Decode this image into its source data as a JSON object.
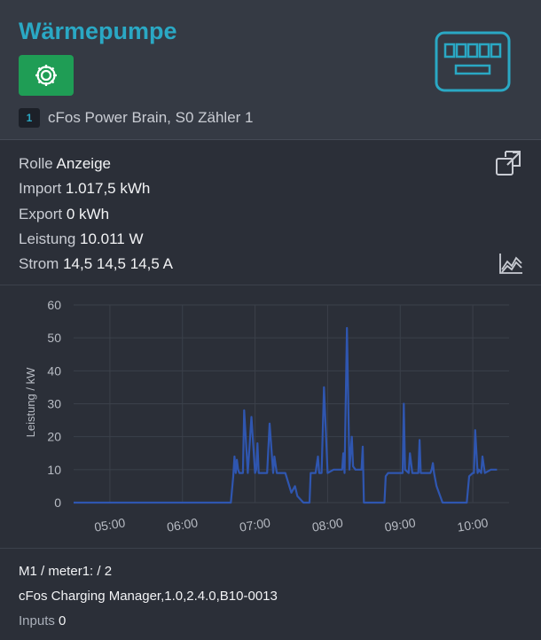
{
  "header": {
    "title": "Wärmepumpe",
    "badge": "1",
    "source": "cFos Power Brain, S0 Zähler 1"
  },
  "info": {
    "rolle_label": "Rolle",
    "rolle_value": "Anzeige",
    "import_label": "Import",
    "import_value": "1.017,5 kWh",
    "export_label": "Export",
    "export_value": "0 kWh",
    "leistung_label": "Leistung",
    "leistung_value": "10.011 W",
    "strom_label": "Strom",
    "strom_value": "14,5 14,5 14,5 A"
  },
  "footer": {
    "m1": "M1",
    "meter": " / meter1: / 2",
    "manager": "cFos Charging Manager,1.0,2.4.0,B10-0013",
    "inputs_label": "Inputs",
    "inputs_value": "0"
  },
  "colors": {
    "accent": "#2aa8c4",
    "button": "#1f9d55",
    "line": "#2f56b0"
  },
  "chart_data": {
    "type": "line",
    "ylabel": "Leistung / kW",
    "ylim": [
      0,
      60
    ],
    "yticks": [
      0,
      10,
      20,
      30,
      40,
      50,
      60
    ],
    "xlim": [
      "04:30",
      "10:30"
    ],
    "xticks": [
      "05:00",
      "06:00",
      "07:00",
      "08:00",
      "09:00",
      "10:00"
    ],
    "grid": true,
    "series": [
      {
        "x": [
          "04:30",
          "06:40",
          "06:42",
          "06:43",
          "06:44",
          "06:45",
          "06:46",
          "06:47",
          "06:48",
          "06:49",
          "06:50",
          "06:51",
          "06:54",
          "06:57",
          "07:00",
          "07:01",
          "07:02",
          "07:03",
          "07:05",
          "07:07",
          "07:10",
          "07:12",
          "07:15",
          "07:16",
          "07:18",
          "07:20",
          "07:25",
          "07:30",
          "07:33",
          "07:35",
          "07:40",
          "07:45",
          "07:46",
          "07:48",
          "07:50",
          "07:52",
          "07:53",
          "07:55",
          "07:57",
          "08:00",
          "08:05",
          "08:09",
          "08:12",
          "08:13",
          "08:14",
          "08:16",
          "08:18",
          "08:20",
          "08:21",
          "08:23",
          "08:25",
          "08:28",
          "08:29",
          "08:30",
          "08:40",
          "08:47",
          "08:48",
          "08:50",
          "08:55",
          "09:00",
          "09:02",
          "09:03",
          "09:04",
          "09:07",
          "09:08",
          "09:10",
          "09:15",
          "09:16",
          "09:17",
          "09:20",
          "09:25",
          "09:26",
          "09:27",
          "09:28",
          "09:30",
          "09:35",
          "09:45",
          "09:55",
          "09:57",
          "10:00",
          "10:01",
          "10:02",
          "10:04",
          "10:05",
          "10:07",
          "10:08",
          "10:10",
          "10:15",
          "10:16",
          "10:18",
          "10:20"
        ],
        "y": [
          0,
          0,
          8,
          14,
          9,
          13,
          10,
          9,
          9,
          9,
          9,
          28,
          9,
          26,
          9,
          10,
          18,
          9,
          9,
          9,
          9,
          24,
          9,
          14,
          9,
          9,
          9,
          3,
          5,
          2,
          0,
          0,
          9,
          9,
          9,
          14,
          9,
          9,
          35,
          9,
          10,
          10,
          10,
          15,
          9,
          53,
          10,
          20,
          11,
          10,
          10,
          10,
          17,
          0,
          0,
          0,
          8,
          9,
          9,
          9,
          9,
          30,
          10,
          9,
          15,
          9,
          9,
          19,
          9,
          9,
          9,
          10,
          12,
          9,
          5,
          0,
          0,
          0,
          8,
          9,
          9,
          22,
          9,
          10,
          9,
          14,
          9,
          10,
          10,
          10,
          10
        ]
      }
    ]
  }
}
